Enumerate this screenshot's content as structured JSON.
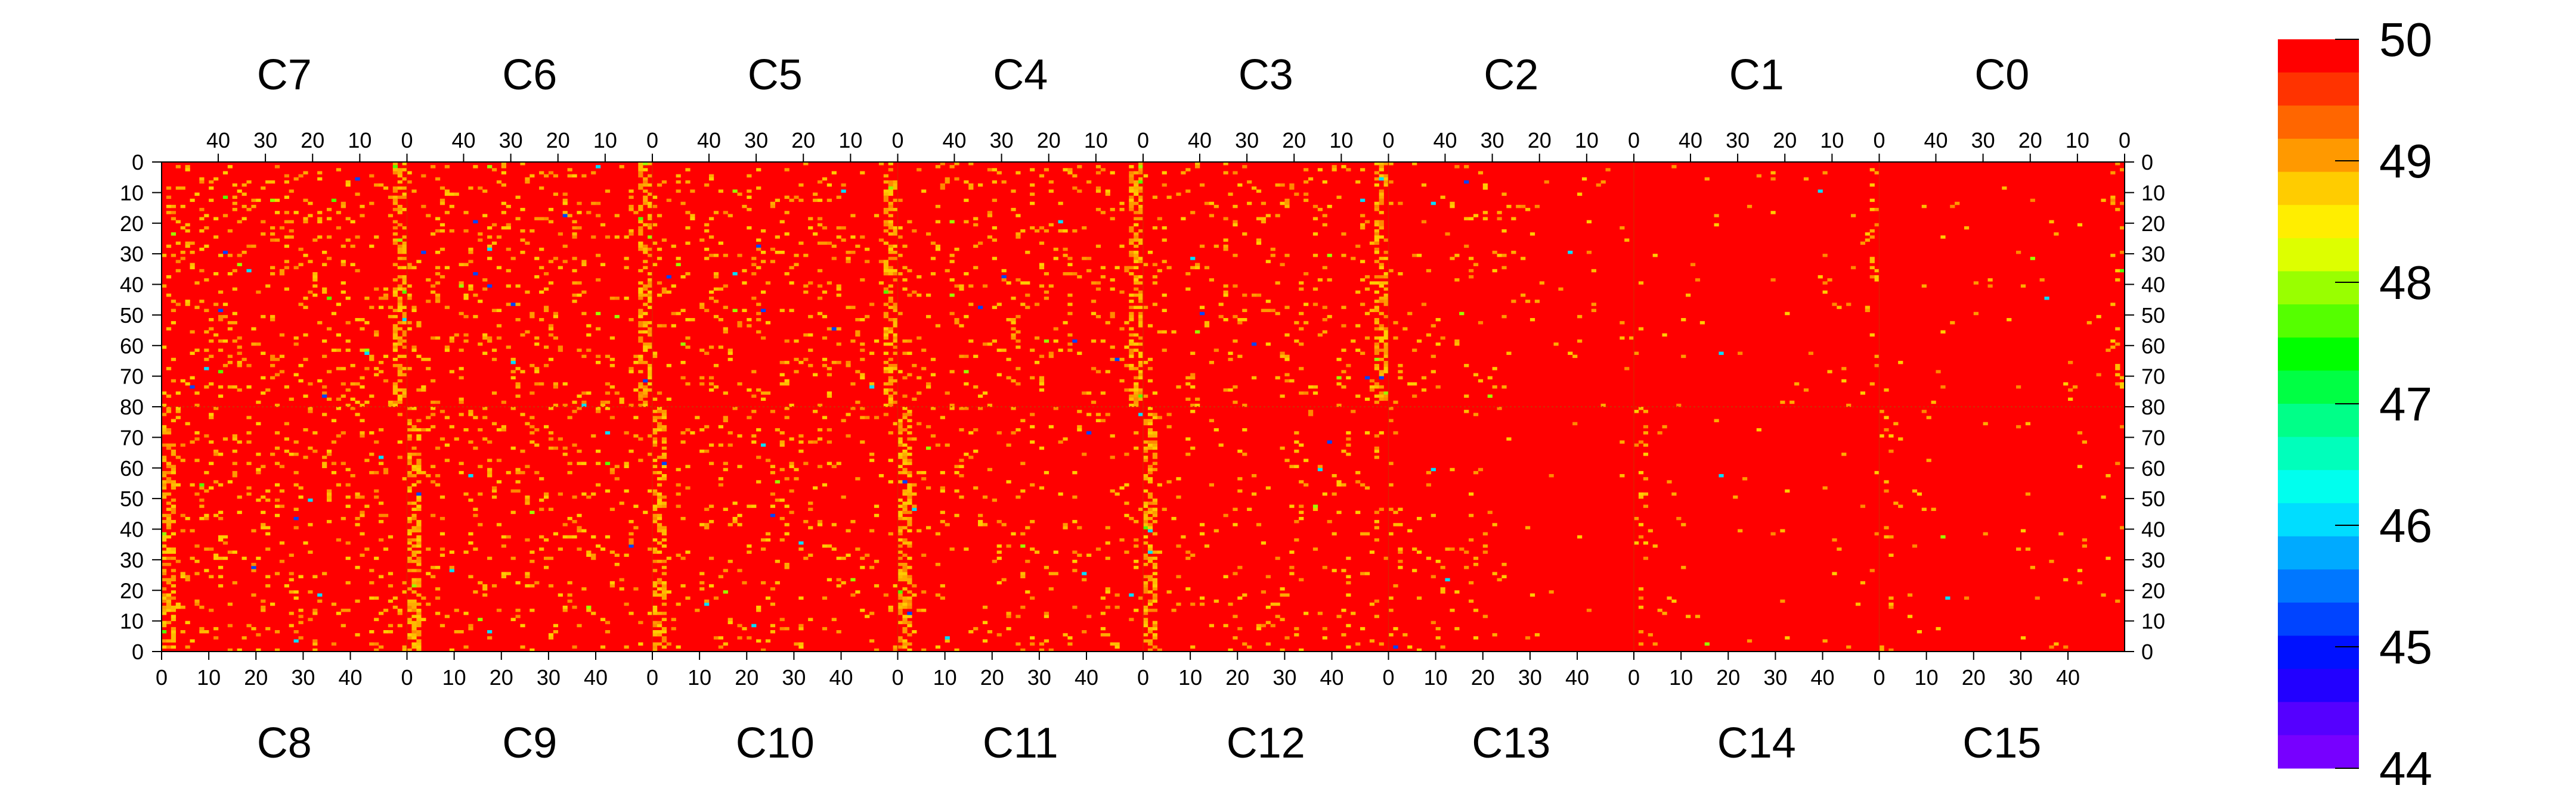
{
  "chart_data": {
    "type": "heatmap",
    "title": "",
    "xlabel": "",
    "ylabel": "",
    "top_chip_labels": [
      "C7",
      "C6",
      "C5",
      "C4",
      "C3",
      "C2",
      "C1",
      "C0"
    ],
    "bottom_chip_labels": [
      "C8",
      "C9",
      "C10",
      "C11",
      "C12",
      "C13",
      "C14",
      "C15"
    ],
    "top_x_tick_labels": [
      "40",
      "30",
      "20",
      "10",
      "0"
    ],
    "bottom_x_tick_labels": [
      "0",
      "10",
      "20",
      "30",
      "40"
    ],
    "y_tick_labels_top_half": [
      "0",
      "10",
      "20",
      "30",
      "40",
      "50",
      "60",
      "70",
      "80"
    ],
    "y_tick_labels_bottom_half": [
      "70",
      "60",
      "50",
      "40",
      "30",
      "20",
      "10",
      "0"
    ],
    "columns_per_chip": 52,
    "rows_per_half": 80,
    "z_range": [
      44,
      50
    ],
    "colorbar_tick_labels": [
      "50",
      "49",
      "48",
      "47",
      "46",
      "45",
      "44"
    ],
    "colorbar_colors": [
      "#ff0000",
      "#ff3300",
      "#ff6600",
      "#ff9900",
      "#ffcc00",
      "#ffee00",
      "#ddff00",
      "#99ff00",
      "#55ff00",
      "#00ff00",
      "#00ff44",
      "#00ff88",
      "#00ffbb",
      "#00ffee",
      "#00ddff",
      "#00aaff",
      "#0077ff",
      "#0044ff",
      "#0011ff",
      "#2200ff",
      "#5500ff",
      "#7700ff"
    ],
    "dominant_value": 50,
    "note_distribution": "Most pixels at 50; scattered pixels near 49 (orange/yellow), concentrated near the chip column edges (column 0) and at row 80; few lower values.",
    "grid": false
  }
}
